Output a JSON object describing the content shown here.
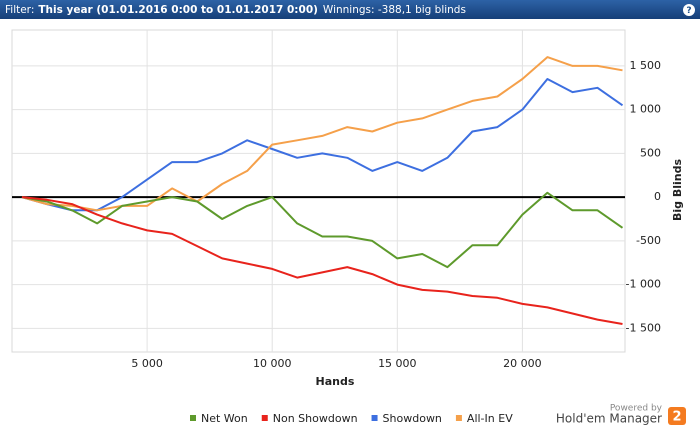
{
  "header": {
    "filter_label": "Filter:",
    "filter_value": "This year (01.01.2016 0:00 to 01.01.2017 0:00)",
    "winnings": "Winnings: -388,1 big blinds",
    "help": "?"
  },
  "branding": {
    "powered_by": "Powered by",
    "product": "Hold'em Manager",
    "logo": "2"
  },
  "chart_data": {
    "type": "line",
    "x_label": "Hands",
    "y_label": "Big Blinds",
    "x": [
      0,
      1000,
      2000,
      3000,
      4000,
      5000,
      6000,
      7000,
      8000,
      9000,
      10000,
      11000,
      12000,
      13000,
      14000,
      15000,
      16000,
      17000,
      18000,
      19000,
      20000,
      21000,
      22000,
      23000,
      24000
    ],
    "series": [
      {
        "name": "Net Won",
        "color": "#5e9a2c",
        "values": [
          0,
          -50,
          -150,
          -300,
          -100,
          -50,
          0,
          -50,
          -250,
          -100,
          0,
          -300,
          -450,
          -450,
          -500,
          -700,
          -650,
          -800,
          -550,
          -550,
          -200,
          50,
          -150,
          -150,
          -350
        ]
      },
      {
        "name": "Non Showdown",
        "color": "#e8231c",
        "values": [
          0,
          -30,
          -80,
          -200,
          -300,
          -380,
          -420,
          -560,
          -700,
          -760,
          -820,
          -920,
          -860,
          -800,
          -880,
          -1000,
          -1060,
          -1080,
          -1130,
          -1150,
          -1220,
          -1260,
          -1330,
          -1400,
          -1450
        ]
      },
      {
        "name": "Showdown",
        "color": "#3d6fe0",
        "values": [
          0,
          -80,
          -150,
          -150,
          0,
          200,
          400,
          400,
          500,
          650,
          550,
          450,
          500,
          450,
          300,
          400,
          300,
          450,
          750,
          800,
          1000,
          1350,
          1200,
          1250,
          1050
        ]
      },
      {
        "name": "All-In EV",
        "color": "#f5a04a",
        "values": [
          0,
          -80,
          -100,
          -150,
          -100,
          -100,
          100,
          -50,
          150,
          300,
          600,
          650,
          700,
          800,
          750,
          850,
          900,
          1000,
          1100,
          1150,
          1350,
          1600,
          1500,
          1500,
          1450
        ]
      }
    ],
    "xlim": [
      -400,
      24100
    ],
    "ylim": [
      -1770,
      1910
    ],
    "xticks": [
      {
        "value": 5000,
        "label": "5 000"
      },
      {
        "value": 10000,
        "label": "10 000"
      },
      {
        "value": 15000,
        "label": "15 000"
      },
      {
        "value": 20000,
        "label": "20 000"
      }
    ],
    "yticks": [
      {
        "value": -1500,
        "label": "-1 500"
      },
      {
        "value": -1000,
        "label": "-1 000"
      },
      -500,
      0,
      500,
      {
        "value": 1000,
        "label": "1 000"
      },
      {
        "value": 1500,
        "label": "1 500"
      }
    ],
    "grid": true
  }
}
